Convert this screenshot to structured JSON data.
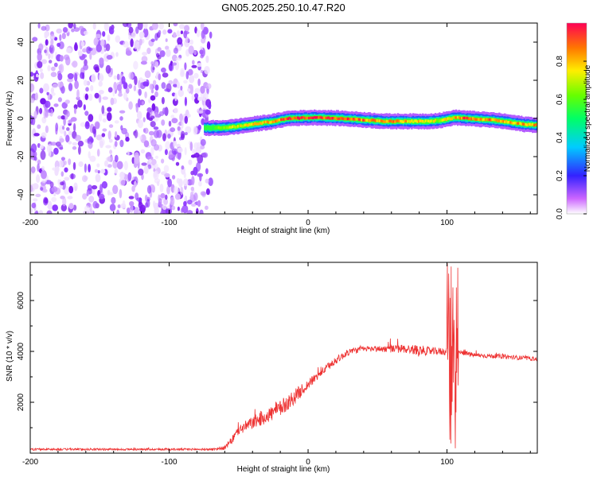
{
  "title": "GN05.2025.250.10.47.R20",
  "chart_data": [
    {
      "type": "heatmap",
      "name": "spectrogram",
      "xlabel": "Height of straight line (km)",
      "ylabel": "Frequency (Hz)",
      "xlim": [
        -200,
        165
      ],
      "ylim": [
        -50,
        50
      ],
      "x_ticks": [
        -200,
        -100,
        0,
        100
      ],
      "x_tick_labels": [
        "-200",
        "-100",
        "0",
        "100"
      ],
      "y_ticks": [
        -40,
        -20,
        0,
        20,
        40
      ],
      "y_tick_labels": [
        "-40",
        "-20",
        "0",
        "20",
        "40"
      ],
      "noise_region_x": [
        -200,
        -70
      ],
      "signal_track": {
        "x": [
          -75,
          -65,
          -55,
          -45,
          -35,
          -25,
          -15,
          -5,
          5,
          15,
          25,
          35,
          45,
          55,
          65,
          75,
          85,
          95,
          105,
          115,
          125,
          135,
          145,
          155,
          165
        ],
        "freq": [
          -5,
          -5,
          -4.5,
          -3.5,
          -2.5,
          -1.5,
          0,
          0.3,
          0.5,
          0.3,
          0,
          -0.5,
          -1,
          -1.5,
          -1.5,
          -1.5,
          -1.5,
          -1,
          0.5,
          0,
          -0.5,
          -1,
          -2,
          -3,
          -3.5
        ],
        "amplitude": [
          0.35,
          0.6,
          0.7,
          0.75,
          0.8,
          0.85,
          0.95,
          1.0,
          0.95,
          0.95,
          1.0,
          0.9,
          0.85,
          0.9,
          0.85,
          0.8,
          0.75,
          0.7,
          0.8,
          0.95,
          0.85,
          0.9,
          0.8,
          0.85,
          0.85
        ]
      }
    },
    {
      "type": "colorbar",
      "name": "amplitude-colorbar",
      "label": "Normalized spectral amplitude",
      "range": [
        0,
        1
      ],
      "ticks": [
        0,
        0.2,
        0.4,
        0.6,
        0.8
      ],
      "tick_labels": [
        "0.0",
        "0.2",
        "0.4",
        "0.6",
        "0.8"
      ]
    },
    {
      "type": "line",
      "name": "snr",
      "xlabel": "Height of straight line (km)",
      "ylabel": "SNR (10 * v/v)",
      "xlim": [
        -200,
        165
      ],
      "ylim": [
        0,
        7500
      ],
      "x_ticks": [
        -200,
        -100,
        0,
        100
      ],
      "x_tick_labels": [
        "-200",
        "-100",
        "0",
        "100"
      ],
      "y_ticks": [
        2000,
        4000,
        6000
      ],
      "y_tick_labels": [
        "2000",
        "4000",
        "6000"
      ],
      "color": "#ee3333",
      "envelope": {
        "x": [
          -200,
          -70,
          -60,
          -55,
          -50,
          -40,
          -30,
          -20,
          -10,
          0,
          10,
          20,
          30,
          40,
          50,
          60,
          70,
          80,
          90,
          100,
          110,
          120,
          140,
          165
        ],
        "y": [
          150,
          150,
          200,
          500,
          900,
          1200,
          1450,
          1750,
          2200,
          2700,
          3200,
          3650,
          4000,
          4100,
          4100,
          4100,
          4100,
          4050,
          4000,
          4000,
          3950,
          3850,
          3800,
          3700
        ],
        "noise": [
          40,
          40,
          80,
          150,
          200,
          250,
          300,
          330,
          300,
          200,
          150,
          150,
          130,
          110,
          120,
          150,
          180,
          200,
          150,
          150,
          100,
          90,
          90,
          80
        ]
      },
      "burst": {
        "x_range": [
          100,
          108
        ],
        "y_range": [
          0,
          7500
        ]
      }
    }
  ]
}
